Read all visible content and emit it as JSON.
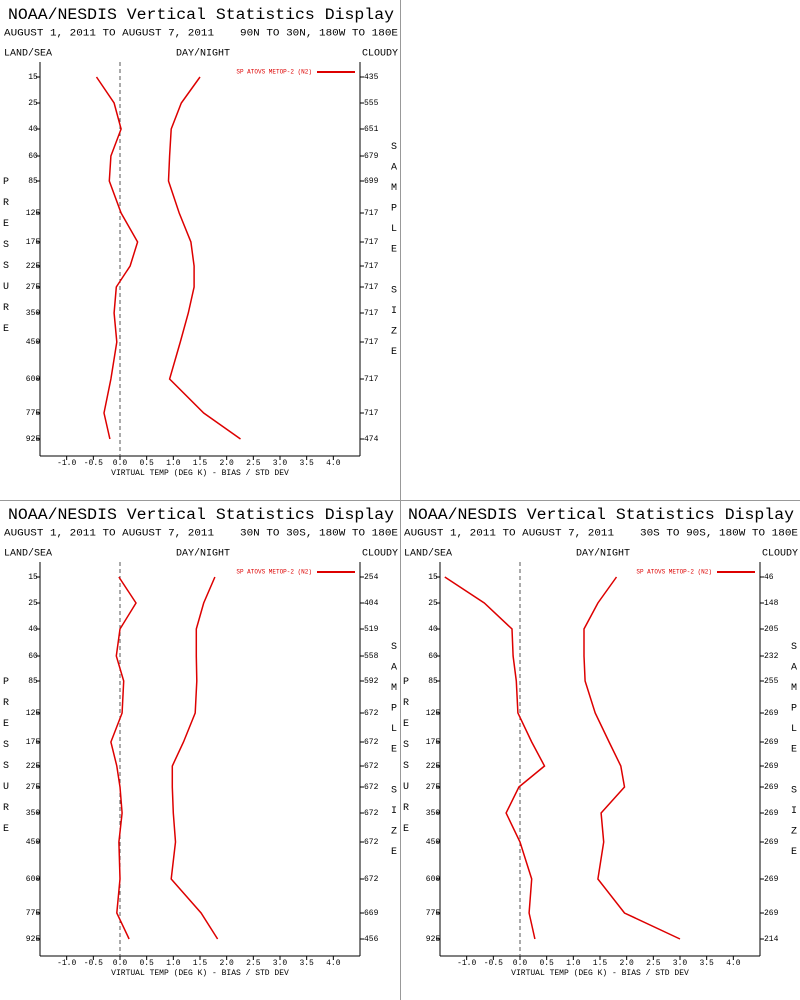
{
  "chart_data": [
    {
      "type": "line",
      "title": "NOAA/NESDIS Vertical Statistics Display",
      "subtitle": "AUGUST 1, 2011 TO AUGUST 7, 2011",
      "region": "90N TO 30N, 180W TO 180E",
      "land_sea": "LAND/SEA",
      "day_night": "DAY/NIGHT",
      "cloud": "CLOUDY",
      "y_label": "PRESSURE",
      "y2_label": "SAMPLE SIZE",
      "x_label": "VIRTUAL TEMP (DEG K) - BIAS / STD DEV",
      "categories": [
        "15",
        "25",
        "40",
        "60",
        "85",
        "125",
        "175",
        "225",
        "275",
        "350",
        "450",
        "600",
        "775",
        "925"
      ],
      "sample_size": [
        435,
        555,
        651,
        679,
        699,
        717,
        717,
        717,
        717,
        717,
        717,
        717,
        717,
        474
      ],
      "series": [
        {
          "name": "SP ATOVS METOP-2 (N2)",
          "color": "#dd0000",
          "values": [
            -0.44,
            -0.11,
            0.02,
            -0.17,
            -0.2,
            0.02,
            0.33,
            0.19,
            -0.07,
            -0.11,
            -0.06,
            -0.17,
            -0.3,
            -0.19
          ],
          "std_values": [
            1.5,
            1.15,
            0.96,
            0.93,
            0.91,
            1.11,
            1.33,
            1.39,
            1.39,
            1.28,
            1.13,
            0.93,
            1.57,
            2.26
          ]
        }
      ],
      "xlim": [
        -1.5,
        4.5
      ],
      "xticks": [
        {
          "value": -1,
          "label": "-1.0"
        },
        -0.5,
        {
          "value": 0,
          "label": "0.0"
        },
        0.5,
        {
          "value": 1,
          "label": "1.0"
        },
        1.5,
        {
          "value": 2,
          "label": "2.0"
        },
        2.5,
        {
          "value": 3,
          "label": "3.0"
        },
        3.5,
        {
          "value": 4,
          "label": "4.0"
        }
      ]
    },
    {
      "type": "line",
      "title": "NOAA/NESDIS Vertical Statistics Display",
      "subtitle": "AUGUST 1, 2011 TO AUGUST 7, 2011",
      "region": "30N TO 30S, 180W TO 180E",
      "land_sea": "LAND/SEA",
      "day_night": "DAY/NIGHT",
      "cloud": "CLOUDY",
      "y_label": "PRESSURE",
      "y2_label": "SAMPLE SIZE",
      "x_label": "VIRTUAL TEMP (DEG K) - BIAS / STD DEV",
      "categories": [
        "15",
        "25",
        "40",
        "60",
        "85",
        "125",
        "175",
        "225",
        "275",
        "350",
        "450",
        "600",
        "775",
        "925"
      ],
      "sample_size": [
        254,
        404,
        519,
        558,
        592,
        672,
        672,
        672,
        672,
        672,
        672,
        672,
        669,
        456
      ],
      "series": [
        {
          "name": "SP ATOVS METOP-2 (N2)",
          "color": "#dd0000",
          "values": [
            -0.02,
            0.3,
            0,
            -0.07,
            0.07,
            0.04,
            -0.17,
            -0.06,
            0,
            0.04,
            -0.02,
            0,
            -0.06,
            0.17
          ],
          "std_values": [
            1.78,
            1.57,
            1.43,
            1.43,
            1.44,
            1.41,
            1.19,
            0.98,
            0.98,
            1.0,
            1.04,
            0.96,
            1.52,
            1.83
          ]
        }
      ],
      "xlim": [
        -1.5,
        4.5
      ],
      "xticks": [
        {
          "value": -1,
          "label": "-1.0"
        },
        -0.5,
        {
          "value": 0,
          "label": "0.0"
        },
        0.5,
        {
          "value": 1,
          "label": "1.0"
        },
        1.5,
        {
          "value": 2,
          "label": "2.0"
        },
        2.5,
        {
          "value": 3,
          "label": "3.0"
        },
        3.5,
        {
          "value": 4,
          "label": "4.0"
        }
      ]
    },
    {
      "type": "line",
      "title": "NOAA/NESDIS Vertical Statistics Display",
      "subtitle": "AUGUST 1, 2011 TO AUGUST 7, 2011",
      "region": "30S TO 90S, 180W TO 180E",
      "land_sea": "LAND/SEA",
      "day_night": "DAY/NIGHT",
      "cloud": "CLOUDY",
      "y_label": "PRESSURE",
      "y2_label": "SAMPLE SIZE",
      "x_label": "VIRTUAL TEMP (DEG K) - BIAS / STD DEV",
      "categories": [
        "15",
        "25",
        "40",
        "60",
        "85",
        "125",
        "175",
        "225",
        "275",
        "350",
        "450",
        "600",
        "775",
        "925"
      ],
      "sample_size": [
        46,
        148,
        205,
        232,
        255,
        269,
        269,
        269,
        269,
        269,
        269,
        269,
        269,
        214
      ],
      "series": [
        {
          "name": "SP ATOVS METOP-2 (N2)",
          "color": "#dd0000",
          "values": [
            -1.41,
            -0.67,
            -0.15,
            -0.13,
            -0.07,
            -0.04,
            0.22,
            0.46,
            -0.02,
            -0.26,
            0,
            0.22,
            0.17,
            0.28
          ],
          "std_values": [
            1.81,
            1.46,
            1.2,
            1.2,
            1.22,
            1.41,
            1.67,
            1.89,
            1.96,
            1.52,
            1.57,
            1.46,
            1.96,
            3.0
          ]
        }
      ],
      "xlim": [
        -1.5,
        4.5
      ],
      "xticks": [
        {
          "value": -1,
          "label": "-1.0"
        },
        -0.5,
        {
          "value": 0,
          "label": "0.0"
        },
        0.5,
        {
          "value": 1,
          "label": "1.0"
        },
        1.5,
        {
          "value": 2,
          "label": "2.0"
        },
        2.5,
        {
          "value": 3,
          "label": "3.0"
        },
        3.5,
        {
          "value": 4,
          "label": "4.0"
        }
      ]
    }
  ]
}
